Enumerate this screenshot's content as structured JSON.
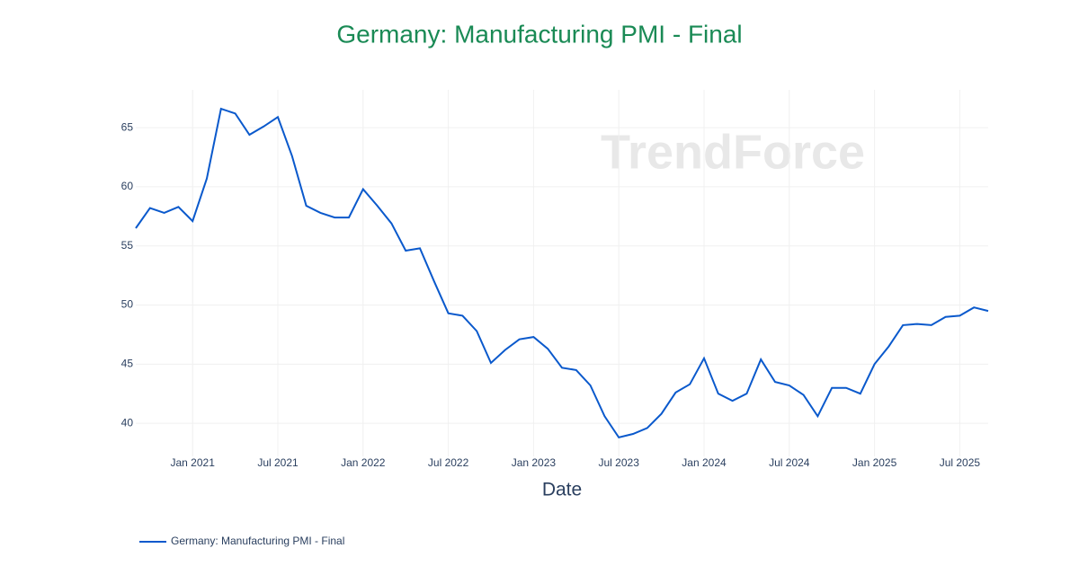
{
  "chart_data": {
    "type": "line",
    "title": "Germany: Manufacturing PMI - Final",
    "watermark": "TrendForce",
    "x_label": "Date",
    "x": [
      "2020-09",
      "2020-10",
      "2020-11",
      "2020-12",
      "2021-01",
      "2021-02",
      "2021-03",
      "2021-04",
      "2021-05",
      "2021-06",
      "2021-07",
      "2021-08",
      "2021-09",
      "2021-10",
      "2021-11",
      "2021-12",
      "2022-01",
      "2022-02",
      "2022-03",
      "2022-04",
      "2022-05",
      "2022-06",
      "2022-07",
      "2022-08",
      "2022-09",
      "2022-10",
      "2022-11",
      "2022-12",
      "2023-01",
      "2023-02",
      "2023-03",
      "2023-04",
      "2023-05",
      "2023-06",
      "2023-07",
      "2023-08",
      "2023-09",
      "2023-10",
      "2023-11",
      "2023-12",
      "2024-01",
      "2024-02",
      "2024-03",
      "2024-04",
      "2024-05",
      "2024-06",
      "2024-07",
      "2024-08",
      "2024-09",
      "2024-10",
      "2024-11",
      "2024-12",
      "2025-01",
      "2025-02",
      "2025-03",
      "2025-04",
      "2025-05",
      "2025-06",
      "2025-07",
      "2025-08",
      "2025-09"
    ],
    "series": [
      {
        "name": "Germany: Manufacturing PMI - Final",
        "color": "#0a59cc",
        "values": [
          56.5,
          58.2,
          57.8,
          58.3,
          57.1,
          60.7,
          66.6,
          66.2,
          64.4,
          65.1,
          65.9,
          62.6,
          58.4,
          57.8,
          57.4,
          57.4,
          59.8,
          58.4,
          56.9,
          54.6,
          54.8,
          52.0,
          49.3,
          49.1,
          47.8,
          45.1,
          46.2,
          47.1,
          47.3,
          46.3,
          44.7,
          44.5,
          43.2,
          40.6,
          38.8,
          39.1,
          39.6,
          40.8,
          42.6,
          43.3,
          45.5,
          42.5,
          41.9,
          42.5,
          45.4,
          43.5,
          43.2,
          42.4,
          40.6,
          43.0,
          43.0,
          42.5,
          45.0,
          46.5,
          48.3,
          48.4,
          48.3,
          49.0,
          49.1,
          49.8,
          49.5
        ]
      }
    ],
    "xlim": [
      "2020-09",
      "2025-09"
    ],
    "xticks": [
      {
        "value": "2021-01",
        "label": "Jan 2021"
      },
      {
        "value": "2021-07",
        "label": "Jul 2021"
      },
      {
        "value": "2022-01",
        "label": "Jan 2022"
      },
      {
        "value": "2022-07",
        "label": "Jul 2022"
      },
      {
        "value": "2023-01",
        "label": "Jan 2023"
      },
      {
        "value": "2023-07",
        "label": "Jul 2023"
      },
      {
        "value": "2024-01",
        "label": "Jan 2024"
      },
      {
        "value": "2024-07",
        "label": "Jul 2024"
      },
      {
        "value": "2025-01",
        "label": "Jan 2025"
      },
      {
        "value": "2025-07",
        "label": "Jul 2025"
      }
    ],
    "ylim": [
      37.2,
      68.2
    ],
    "yticks": [
      40,
      45,
      50,
      55,
      60,
      65
    ],
    "grid": true,
    "legend": "bottom-left"
  }
}
